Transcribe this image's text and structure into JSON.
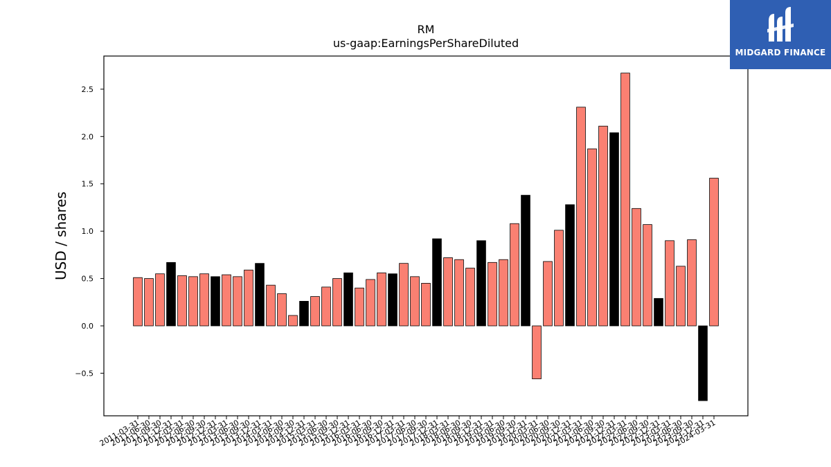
{
  "chart_data": {
    "type": "bar",
    "title": "RM",
    "subtitle": "us-gaap:EarningsPerShareDiluted",
    "ylabel": "USD / shares",
    "xlabel": "",
    "ylim": [
      -0.95,
      2.85
    ],
    "yticks": [
      -0.5,
      0.0,
      0.5,
      1.0,
      1.5,
      2.0,
      2.5
    ],
    "ytick_labels": [
      "−0.5",
      "0.0",
      "0.5",
      "1.0",
      "1.5",
      "2.0",
      "2.5"
    ],
    "grid": false,
    "colors": {
      "quarter": "#fa8072",
      "fiscal_q4": "#000000",
      "edge": "#000000"
    },
    "categories": [
      "2011-03-31",
      "2011-06-30",
      "2011-09-30",
      "2011-12-31",
      "2012-03-31",
      "2012-06-30",
      "2012-09-30",
      "2012-12-31",
      "2013-03-31",
      "2013-06-30",
      "2013-09-30",
      "2013-12-31",
      "2014-03-31",
      "2014-06-30",
      "2014-09-30",
      "2014-12-31",
      "2015-03-31",
      "2015-06-30",
      "2015-09-30",
      "2015-12-31",
      "2016-03-31",
      "2016-06-30",
      "2016-09-30",
      "2016-12-31",
      "2017-03-31",
      "2017-06-30",
      "2017-09-30",
      "2017-12-31",
      "2018-03-31",
      "2018-06-30",
      "2018-09-30",
      "2018-12-31",
      "2019-03-31",
      "2019-06-30",
      "2019-09-30",
      "2019-12-31",
      "2020-03-31",
      "2020-06-30",
      "2020-09-30",
      "2020-12-31",
      "2021-03-31",
      "2021-06-30",
      "2021-09-30",
      "2021-12-31",
      "2022-03-31",
      "2022-06-30",
      "2022-09-30",
      "2022-12-31",
      "2023-03-31",
      "2023-06-30",
      "2023-09-30",
      "2023-12-31",
      "2024-03-31"
    ],
    "values": [
      0.51,
      0.5,
      0.55,
      0.67,
      0.53,
      0.52,
      0.55,
      0.52,
      0.54,
      0.52,
      0.59,
      0.66,
      0.43,
      0.34,
      0.11,
      0.26,
      0.31,
      0.41,
      0.5,
      0.56,
      0.4,
      0.49,
      0.56,
      0.55,
      0.66,
      0.52,
      0.45,
      0.92,
      0.72,
      0.7,
      0.61,
      0.9,
      0.67,
      0.7,
      1.08,
      1.38,
      -0.56,
      0.68,
      1.01,
      1.28,
      2.31,
      1.87,
      2.11,
      2.04,
      2.67,
      1.24,
      1.07,
      0.29,
      0.9,
      0.63,
      0.91,
      -0.79,
      1.56
    ],
    "annual": [
      false,
      false,
      false,
      true,
      false,
      false,
      false,
      true,
      false,
      false,
      false,
      true,
      false,
      false,
      false,
      true,
      false,
      false,
      false,
      true,
      false,
      false,
      false,
      true,
      false,
      false,
      false,
      true,
      false,
      false,
      false,
      true,
      false,
      false,
      false,
      true,
      false,
      false,
      false,
      true,
      false,
      false,
      false,
      true,
      false,
      false,
      false,
      true,
      false,
      false,
      false,
      true,
      false
    ]
  },
  "logo": {
    "text": "MIDGARD FINANCE",
    "icon": "midgard-logo-icon"
  }
}
